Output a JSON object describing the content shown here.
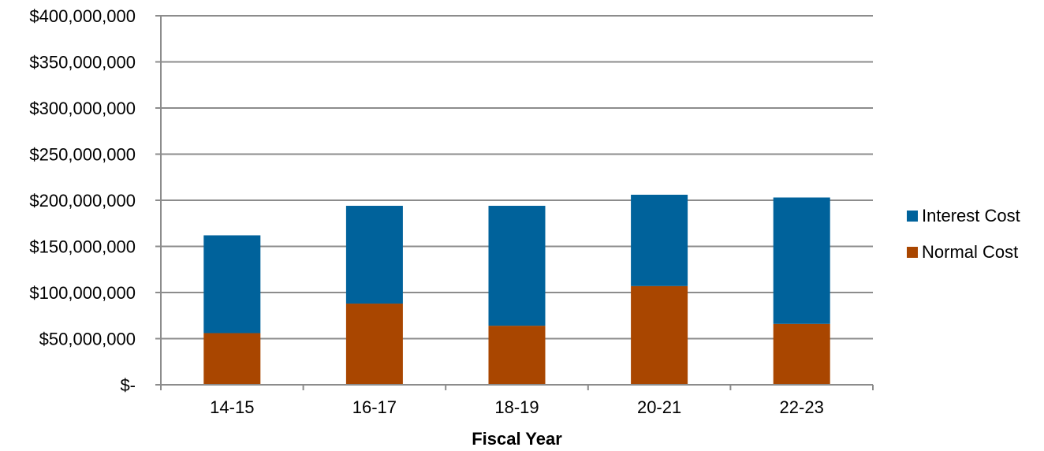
{
  "chart_data": {
    "type": "bar",
    "stacked": true,
    "categories": [
      "14-15",
      "16-17",
      "18-19",
      "20-21",
      "22-23"
    ],
    "series": [
      {
        "name": "Normal Cost",
        "color": "#A94600",
        "values": [
          56000000,
          88000000,
          64000000,
          107000000,
          66000000
        ]
      },
      {
        "name": "Interest Cost",
        "color": "#00629B",
        "values": [
          106000000,
          106000000,
          130000000,
          99000000,
          137000000
        ]
      }
    ],
    "title": "",
    "xlabel": "Fiscal Year",
    "ylabel": "",
    "ylim": [
      0,
      400000000
    ],
    "yticks": [
      0,
      50000000,
      100000000,
      150000000,
      200000000,
      250000000,
      300000000,
      350000000,
      400000000
    ],
    "ytick_labels": [
      "$-",
      "$50,000,000",
      "$100,000,000",
      "$150,000,000",
      "$200,000,000",
      "$250,000,000",
      "$300,000,000",
      "$350,000,000",
      "$400,000,000"
    ],
    "grid": true,
    "legend_position": "right",
    "legend_order": [
      "Interest Cost",
      "Normal Cost"
    ]
  }
}
